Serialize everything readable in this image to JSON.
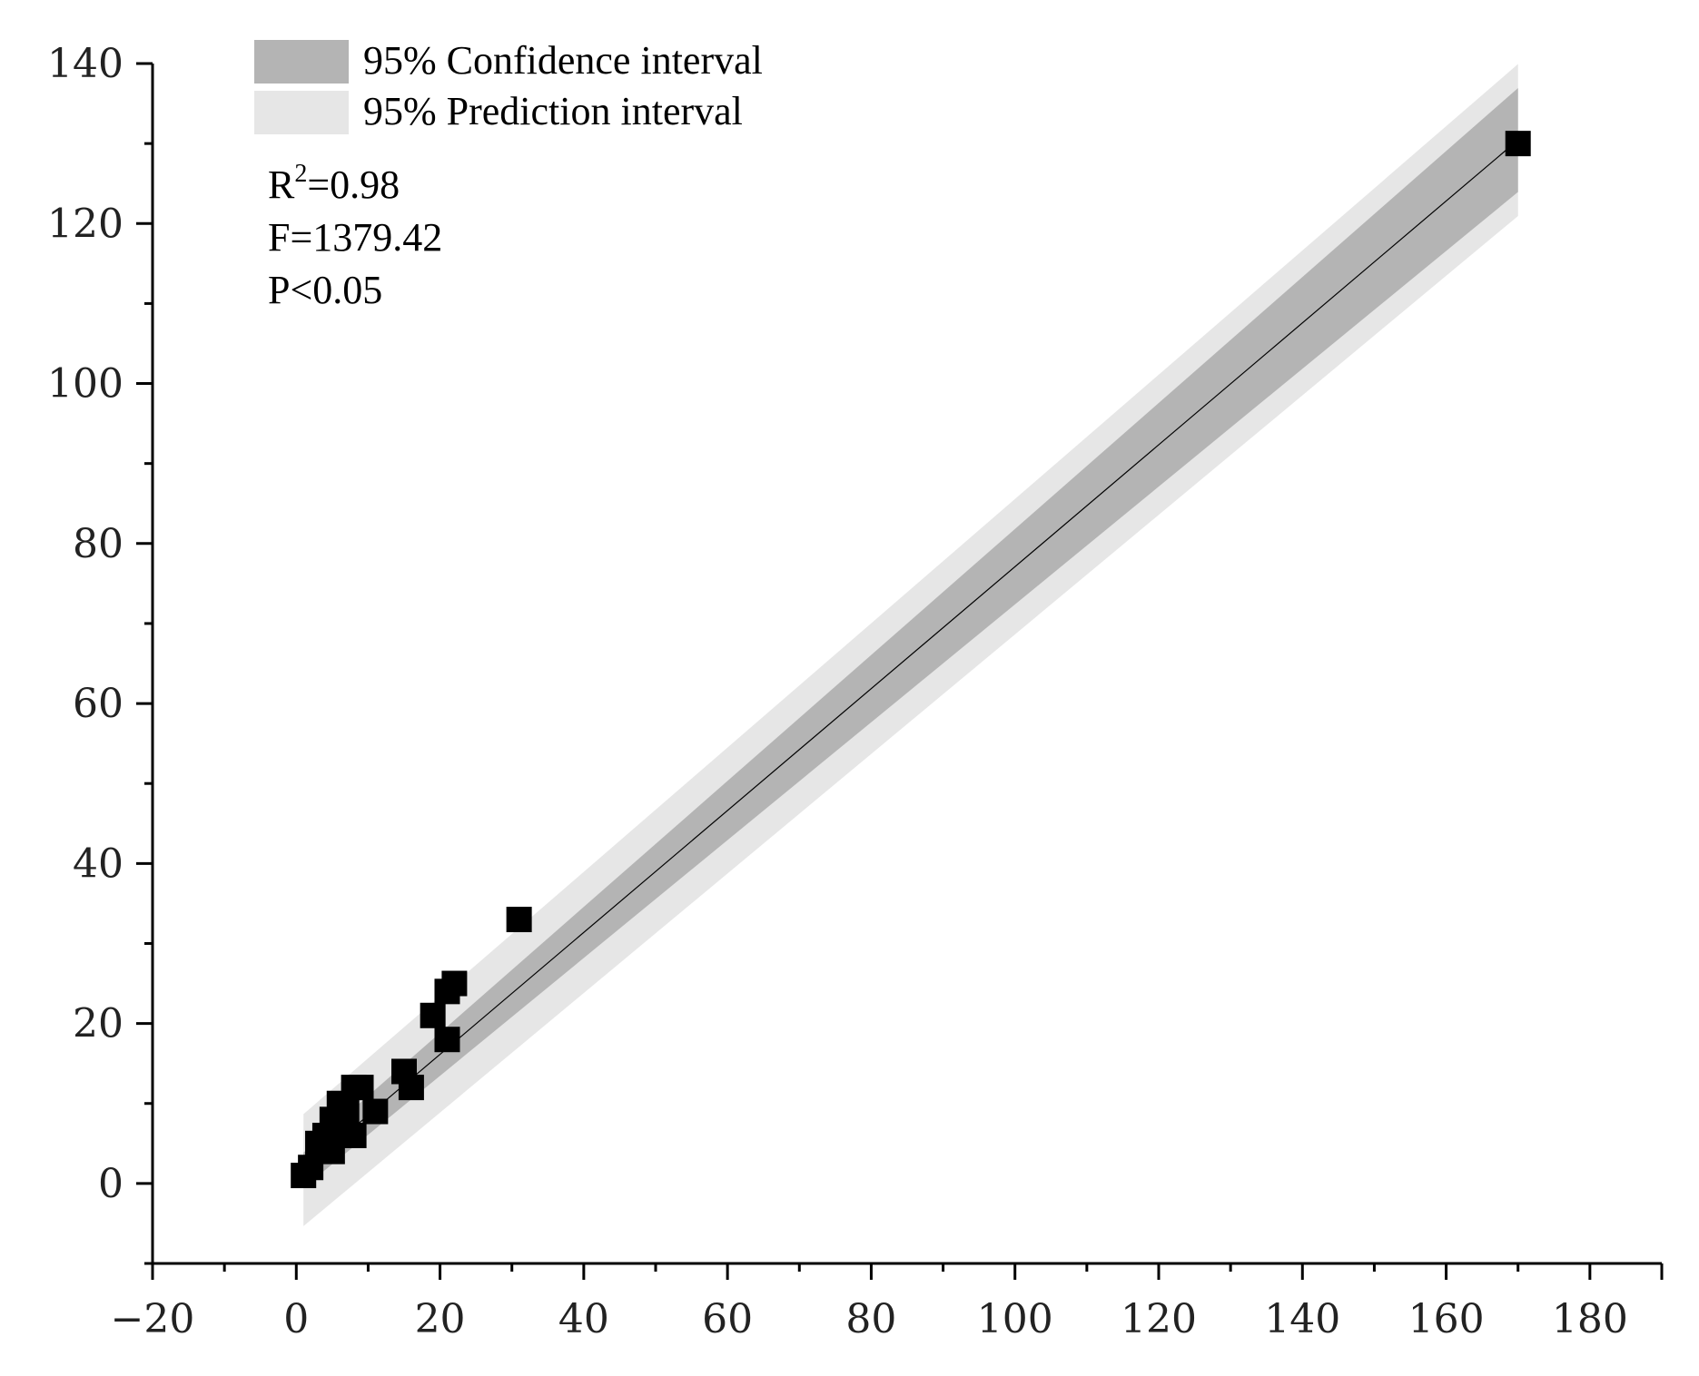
{
  "chart_data": {
    "type": "scatter",
    "title": "",
    "xlabel": "",
    "ylabel": "",
    "xlim": [
      -20,
      190
    ],
    "ylim": [
      -10,
      140
    ],
    "x_ticks": [
      -20,
      0,
      20,
      40,
      60,
      80,
      100,
      120,
      140,
      160,
      180
    ],
    "y_ticks": [
      0,
      20,
      40,
      60,
      80,
      100,
      120,
      140
    ],
    "x_tick_labels": [
      "−20",
      "0",
      "20",
      "40",
      "60",
      "80",
      "100",
      "120",
      "140",
      "160",
      "180"
    ],
    "y_tick_labels": [
      "0",
      "20",
      "40",
      "60",
      "80",
      "100",
      "120",
      "140"
    ],
    "grid": false,
    "legend": {
      "placement": "top-left",
      "entries": [
        {
          "label": "95% Confidence interval",
          "color": "#b4b4b4"
        },
        {
          "label": "95% Prediction interval",
          "color": "#e6e6e6"
        }
      ]
    },
    "stats": {
      "r2_prefix": "R",
      "r2_sup": "2",
      "r2_value": "=0.98",
      "f_text": "F=1379.42",
      "p_text": "P<0.05"
    },
    "fit": {
      "x_range": [
        1,
        170
      ],
      "slope": 0.762,
      "intercept": 0.9,
      "confidence_halfwidth": [
        2.2,
        6.5
      ],
      "prediction_halfwidth": [
        7.0,
        9.5
      ],
      "color": "#000000"
    },
    "points": [
      {
        "x": 1,
        "y": 1
      },
      {
        "x": 2,
        "y": 2
      },
      {
        "x": 3,
        "y": 5
      },
      {
        "x": 4,
        "y": 6
      },
      {
        "x": 5,
        "y": 4
      },
      {
        "x": 5,
        "y": 8
      },
      {
        "x": 6,
        "y": 7
      },
      {
        "x": 6,
        "y": 10
      },
      {
        "x": 7,
        "y": 9
      },
      {
        "x": 8,
        "y": 6
      },
      {
        "x": 8,
        "y": 12
      },
      {
        "x": 9,
        "y": 12
      },
      {
        "x": 11,
        "y": 9
      },
      {
        "x": 15,
        "y": 14
      },
      {
        "x": 16,
        "y": 12
      },
      {
        "x": 19,
        "y": 21
      },
      {
        "x": 21,
        "y": 18
      },
      {
        "x": 21,
        "y": 24
      },
      {
        "x": 22,
        "y": 25
      },
      {
        "x": 31,
        "y": 33
      },
      {
        "x": 170,
        "y": 130
      }
    ],
    "colors": {
      "confidence": "#b4b4b4",
      "prediction": "#e6e6e6",
      "points": "#000000",
      "axis": "#000000"
    }
  }
}
